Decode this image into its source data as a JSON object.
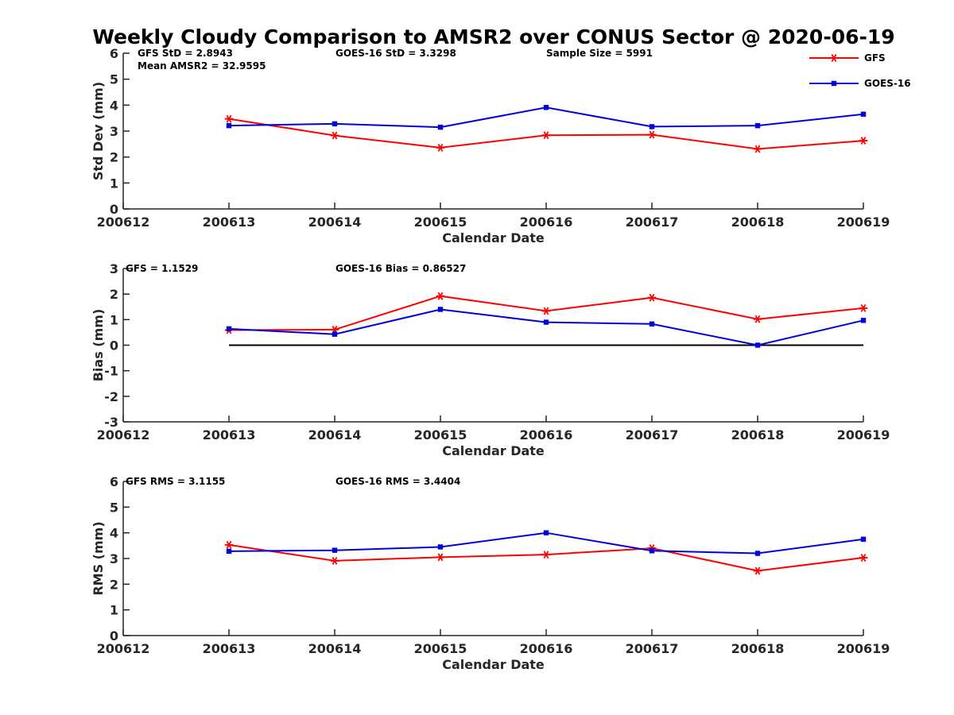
{
  "figure": {
    "title": "Weekly Cloudy Comparison to AMSR2 over CONUS Sector @ 2020-06-19"
  },
  "legend": {
    "placement": "top-right",
    "entries": [
      {
        "name": "GFS",
        "color": "#ff0000",
        "marker": "asterisk"
      },
      {
        "name": "GOES-16",
        "color": "#0000dd",
        "marker": "square"
      }
    ]
  },
  "chart_data": [
    {
      "type": "line",
      "id": "std",
      "xlabel": "Calendar Date",
      "ylabel": "Std Dev (mm)",
      "categories": [
        "200612",
        "200613",
        "200614",
        "200615",
        "200616",
        "200617",
        "200618",
        "200619"
      ],
      "ylim": [
        0,
        6
      ],
      "yticks": [
        "0",
        "1",
        "2",
        "3",
        "4",
        "5",
        "6"
      ],
      "grid": false,
      "zero_line": false,
      "annotations": [
        {
          "text": "GFS StD = 2.8943",
          "col": "left",
          "line": 1
        },
        {
          "text": "Mean AMSR2 = 32.9595",
          "col": "left",
          "line": 2
        },
        {
          "text": "GOES-16 StD = 3.3298",
          "col": "mid",
          "line": 1
        },
        {
          "text": "Sample Size = 5991",
          "col": "right",
          "line": 1
        }
      ],
      "series": [
        {
          "name": "GFS",
          "color": "#ff0000",
          "marker": "asterisk",
          "values": [
            null,
            3.47,
            2.83,
            2.36,
            2.84,
            2.86,
            2.31,
            2.63
          ]
        },
        {
          "name": "GOES-16",
          "color": "#0000dd",
          "marker": "square",
          "values": [
            null,
            3.21,
            3.28,
            3.15,
            3.91,
            3.17,
            3.21,
            3.65
          ]
        }
      ]
    },
    {
      "type": "line",
      "id": "bias",
      "xlabel": "Calendar Date",
      "ylabel": "Bias (mm)",
      "categories": [
        "200612",
        "200613",
        "200614",
        "200615",
        "200616",
        "200617",
        "200618",
        "200619"
      ],
      "ylim": [
        -3,
        3
      ],
      "yticks": [
        "-3",
        "-2",
        "-1",
        "0",
        "1",
        "2",
        "3"
      ],
      "grid": false,
      "zero_line": true,
      "annotations": [
        {
          "text": "GFS = 1.1529",
          "col": "leftedge",
          "line": 1
        },
        {
          "text": "GOES-16 Bias  = 0.86527",
          "col": "mid",
          "line": 1
        }
      ],
      "series": [
        {
          "name": "GFS",
          "color": "#ff0000",
          "marker": "asterisk",
          "values": [
            null,
            0.59,
            0.61,
            1.92,
            1.34,
            1.86,
            1.02,
            1.45
          ]
        },
        {
          "name": "GOES-16",
          "color": "#0000dd",
          "marker": "square",
          "values": [
            null,
            0.64,
            0.43,
            1.4,
            0.9,
            0.83,
            0.0,
            0.97
          ]
        }
      ]
    },
    {
      "type": "line",
      "id": "rms",
      "xlabel": "Calendar Date",
      "ylabel": "RMS (mm)",
      "categories": [
        "200612",
        "200613",
        "200614",
        "200615",
        "200616",
        "200617",
        "200618",
        "200619"
      ],
      "ylim": [
        0,
        6
      ],
      "yticks": [
        "0",
        "1",
        "2",
        "3",
        "4",
        "5",
        "6"
      ],
      "grid": false,
      "zero_line": false,
      "annotations": [
        {
          "text": "GFS RMS = 3.1155",
          "col": "leftedge",
          "line": 1
        },
        {
          "text": "GOES-16 RMS = 3.4404",
          "col": "mid",
          "line": 1
        }
      ],
      "series": [
        {
          "name": "GFS",
          "color": "#ff0000",
          "marker": "asterisk",
          "values": [
            null,
            3.53,
            2.91,
            3.05,
            3.15,
            3.4,
            2.52,
            3.03
          ]
        },
        {
          "name": "GOES-16",
          "color": "#0000dd",
          "marker": "square",
          "values": [
            null,
            3.28,
            3.32,
            3.45,
            4.0,
            3.3,
            3.2,
            3.75
          ]
        }
      ]
    }
  ]
}
